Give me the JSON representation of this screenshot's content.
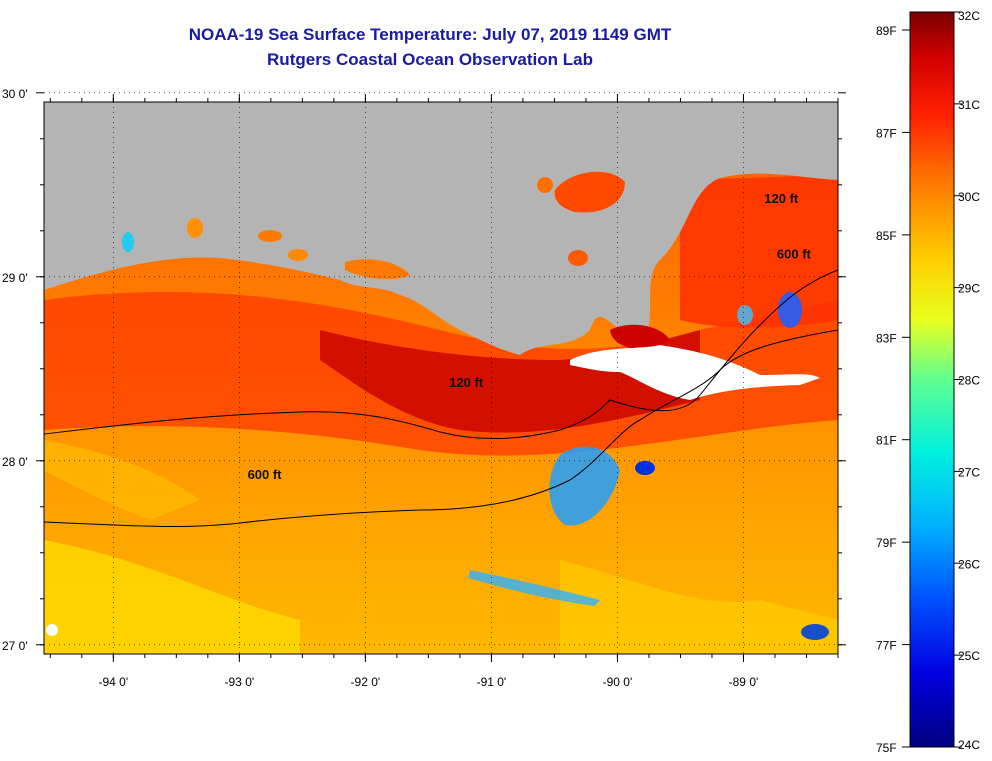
{
  "title": "NOAA-19 Sea Surface Temperature:  July 07, 2019 1149 GMT",
  "subtitle": "Rutgers Coastal Ocean Observation Lab",
  "map": {
    "lon_range": [
      -94.55,
      -88.25
    ],
    "lat_range": [
      26.95,
      29.95
    ],
    "x_ticks": [
      {
        "value": -94,
        "label": "-94 0'"
      },
      {
        "value": -93,
        "label": "-93 0'"
      },
      {
        "value": -92,
        "label": "-92 0'"
      },
      {
        "value": -91,
        "label": "-91 0'"
      },
      {
        "value": -90,
        "label": "-90 0'"
      },
      {
        "value": -89,
        "label": "-89 0'"
      }
    ],
    "y_ticks": [
      {
        "value": 30,
        "label": "30 0'"
      },
      {
        "value": 29,
        "label": "29 0'"
      },
      {
        "value": 28,
        "label": "28 0'"
      },
      {
        "value": 27,
        "label": "27 0'"
      }
    ],
    "contour_labels": [
      {
        "text": "120 ft",
        "lon": -91.2,
        "lat": 28.4
      },
      {
        "text": "600 ft",
        "lon": -92.8,
        "lat": 27.9
      },
      {
        "text": "600 ft",
        "lon": -88.6,
        "lat": 29.1
      },
      {
        "text": "120 ft",
        "lon": -88.7,
        "lat": 29.4
      }
    ],
    "colors": {
      "land": "#b4b4b4",
      "cloud": "#ffffff"
    }
  },
  "colorbar": {
    "fahrenheit": [
      "89F",
      "87F",
      "85F",
      "83F",
      "81F",
      "79F",
      "77F",
      "75F"
    ],
    "celsius": [
      "32C",
      "31C",
      "30C",
      "29C",
      "28C",
      "27C",
      "26C",
      "25C",
      "24C"
    ]
  }
}
